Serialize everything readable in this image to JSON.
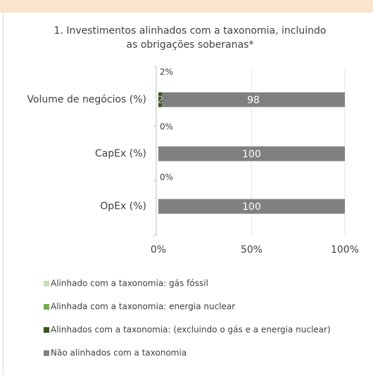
{
  "chart_data": {
    "type": "bar",
    "orientation": "horizontal",
    "stacked": true,
    "title": "1. Investimentos alinhados com a taxonomia, incluindo as obrigações soberanas*",
    "categories": [
      "Volume de negócios (%)",
      "CapEx (%)",
      "OpEx (%)"
    ],
    "series": [
      {
        "name": "Alinhado com a taxonomia: gás fóssil",
        "color": "#c5e0b4",
        "values": [
          0,
          0,
          0
        ]
      },
      {
        "name": "Alinhada com a taxonomia: energia nuclear",
        "color": "#70ad47",
        "values": [
          0,
          0,
          0
        ]
      },
      {
        "name": "Alinhados com a taxonomia: (excluindo o gás e a energia nuclear)",
        "color": "#375623",
        "values": [
          2,
          0,
          0
        ]
      },
      {
        "name": "Não alinhados com a taxonomia",
        "color": "#808080",
        "values": [
          98,
          100,
          100
        ]
      }
    ],
    "annotations": [
      "2%",
      "0%",
      "0%"
    ],
    "xlim": [
      0,
      100
    ],
    "xticks": [
      {
        "value": 0,
        "label": "0%"
      },
      {
        "value": 50,
        "label": "50%"
      },
      {
        "value": 100,
        "label": "100%"
      }
    ],
    "grid": true,
    "legend": "bottom"
  }
}
